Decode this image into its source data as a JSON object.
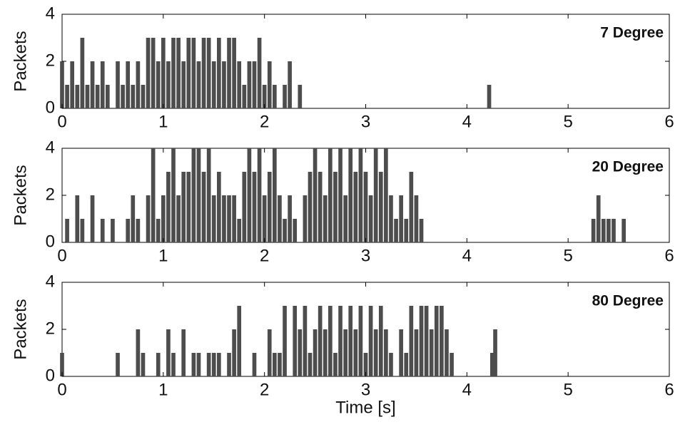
{
  "chart_data": [
    {
      "type": "bar",
      "annotation": "7 Degree",
      "ylabel": "Packets",
      "color": "#4d4d4d",
      "xlim": [
        0,
        6
      ],
      "ylim": [
        0,
        4
      ],
      "xticks": [
        0,
        1,
        2,
        3,
        4,
        5,
        6
      ],
      "yticks": [
        0,
        2,
        4
      ],
      "x": [
        0,
        0.05,
        0.1,
        0.15,
        0.2,
        0.25,
        0.3,
        0.35,
        0.4,
        0.45,
        0.5,
        0.55,
        0.6,
        0.65,
        0.7,
        0.75,
        0.8,
        0.85,
        0.9,
        0.95,
        1.0,
        1.05,
        1.1,
        1.15,
        1.2,
        1.25,
        1.3,
        1.35,
        1.4,
        1.45,
        1.5,
        1.55,
        1.6,
        1.65,
        1.7,
        1.75,
        1.8,
        1.85,
        1.9,
        1.95,
        2.0,
        2.05,
        2.1,
        2.15,
        2.2,
        2.25,
        2.3,
        2.35,
        4.22
      ],
      "values": [
        2,
        1,
        2,
        1,
        3,
        1,
        2,
        1,
        2,
        1,
        0,
        2,
        1,
        2,
        1,
        2,
        1,
        3,
        3,
        2,
        3,
        2,
        3,
        3,
        2,
        3,
        3,
        2,
        3,
        3,
        2,
        3,
        2,
        3,
        3,
        2,
        1,
        2,
        2,
        3,
        1,
        2,
        1,
        0,
        1,
        2,
        0,
        1,
        1
      ]
    },
    {
      "type": "bar",
      "annotation": "20 Degree",
      "ylabel": "Packets",
      "color": "#4d4d4d",
      "xlim": [
        0,
        6
      ],
      "ylim": [
        0,
        4
      ],
      "xticks": [
        0,
        1,
        2,
        3,
        4,
        5,
        6
      ],
      "yticks": [
        0,
        2,
        4
      ],
      "x": [
        0.05,
        0.15,
        0.2,
        0.3,
        0.4,
        0.5,
        0.65,
        0.7,
        0.75,
        0.85,
        0.9,
        0.95,
        1.0,
        1.05,
        1.1,
        1.15,
        1.2,
        1.25,
        1.3,
        1.35,
        1.4,
        1.45,
        1.5,
        1.55,
        1.6,
        1.65,
        1.7,
        1.75,
        1.8,
        1.85,
        1.9,
        1.95,
        2.0,
        2.05,
        2.1,
        2.15,
        2.2,
        2.25,
        2.3,
        2.35,
        2.4,
        2.45,
        2.5,
        2.55,
        2.6,
        2.65,
        2.7,
        2.75,
        2.8,
        2.85,
        2.9,
        2.95,
        3.0,
        3.05,
        3.1,
        3.15,
        3.2,
        3.25,
        3.3,
        3.35,
        3.4,
        3.45,
        3.5,
        3.55,
        5.25,
        5.3,
        5.35,
        5.4,
        5.45,
        5.55
      ],
      "values": [
        1,
        2,
        1,
        2,
        1,
        1,
        1,
        2,
        1,
        2,
        4,
        1,
        2,
        3,
        4,
        2,
        3,
        3,
        4,
        4,
        3,
        4,
        2,
        3,
        2,
        2,
        2,
        1,
        3,
        4,
        3,
        4,
        2,
        3,
        4,
        2,
        1,
        2,
        1,
        0,
        2,
        3,
        4,
        3,
        2,
        4,
        3,
        4,
        2,
        4,
        3,
        4,
        3,
        2,
        4,
        3,
        4,
        2,
        1,
        2,
        1,
        3,
        2,
        1,
        1,
        2,
        1,
        1,
        1,
        1
      ]
    },
    {
      "type": "bar",
      "annotation": "80 Degree",
      "ylabel": "Packets",
      "xlabel": "Time [s]",
      "color": "#4d4d4d",
      "xlim": [
        0,
        6
      ],
      "ylim": [
        0,
        4
      ],
      "xticks": [
        0,
        1,
        2,
        3,
        4,
        5,
        6
      ],
      "yticks": [
        0,
        2,
        4
      ],
      "x": [
        0.0,
        0.55,
        0.75,
        0.8,
        0.95,
        1.05,
        1.1,
        1.2,
        1.3,
        1.35,
        1.45,
        1.5,
        1.55,
        1.65,
        1.7,
        1.75,
        1.9,
        2.05,
        2.1,
        2.15,
        2.2,
        2.3,
        2.35,
        2.4,
        2.45,
        2.5,
        2.55,
        2.6,
        2.65,
        2.7,
        2.75,
        2.8,
        2.85,
        2.9,
        2.95,
        3.0,
        3.05,
        3.1,
        3.15,
        3.2,
        3.25,
        3.3,
        3.35,
        3.4,
        3.45,
        3.5,
        3.55,
        3.6,
        3.65,
        3.7,
        3.75,
        3.8,
        3.85,
        4.25,
        4.28
      ],
      "values": [
        1,
        1,
        2,
        1,
        1,
        2,
        1,
        2,
        1,
        1,
        1,
        1,
        1,
        1,
        2,
        3,
        1,
        2,
        1,
        1,
        3,
        3,
        2,
        3,
        1,
        2,
        3,
        2,
        3,
        1,
        3,
        2,
        3,
        2,
        3,
        1,
        3,
        2,
        3,
        2,
        1,
        0,
        2,
        1,
        3,
        2,
        3,
        3,
        2,
        3,
        3,
        2,
        1,
        1,
        2
      ]
    }
  ]
}
